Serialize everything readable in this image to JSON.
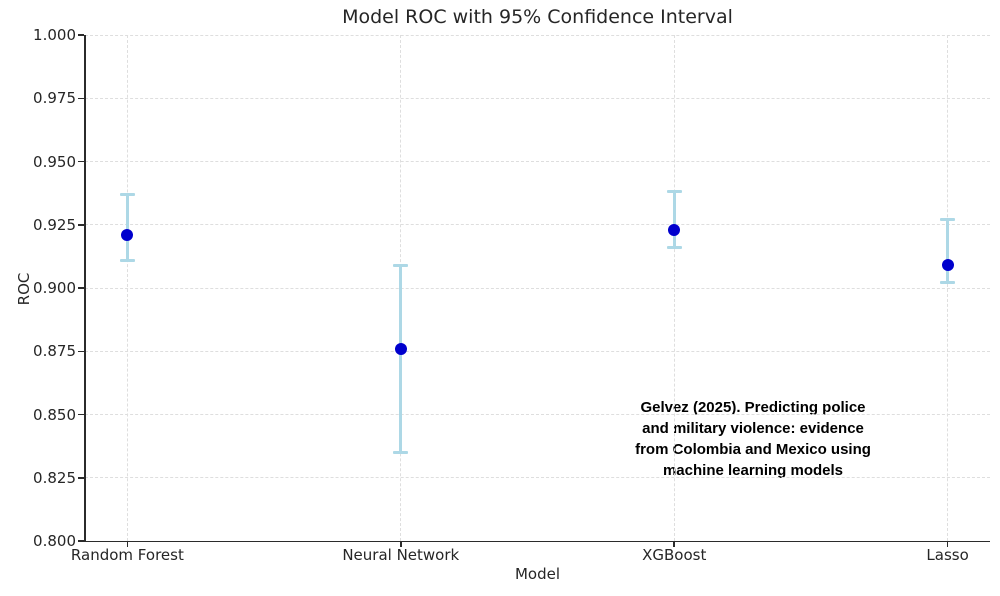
{
  "chart_data": {
    "type": "scatter",
    "subtype": "points-with-error-bars",
    "title": "Model ROC with 95% Confidence Interval",
    "xlabel": "Model",
    "ylabel": "ROC",
    "categories": [
      "Random Forest",
      "Neural Network",
      "XGBoost",
      "Lasso"
    ],
    "series": [
      {
        "name": "ROC",
        "values": [
          0.921,
          0.876,
          0.923,
          0.909
        ],
        "ci_low": [
          0.911,
          0.835,
          0.916,
          0.902
        ],
        "ci_high": [
          0.937,
          0.909,
          0.938,
          0.927
        ]
      }
    ],
    "ylim": [
      0.8,
      1.0
    ],
    "yticks": [
      0.8,
      0.825,
      0.85,
      0.875,
      0.9,
      0.925,
      0.95,
      0.975,
      1.0
    ],
    "ytick_decimals": 3,
    "grid": true,
    "grid_style": "dashed",
    "legend": false,
    "spines_visible": [
      "left",
      "bottom"
    ],
    "annotation": {
      "lines": [
        "Gelvez (2025). Predicting police",
        "and military violence: evidence",
        "from Colombia and Mexico using",
        "machine learning models"
      ]
    },
    "colors": {
      "point": "#0000CD",
      "errorbar": "#ADD8E6",
      "grid": "#DEDEDE",
      "spine": "#2B2B2B",
      "text": "#262626",
      "annotation_text": "#000000",
      "background": "#FFFFFF"
    }
  }
}
